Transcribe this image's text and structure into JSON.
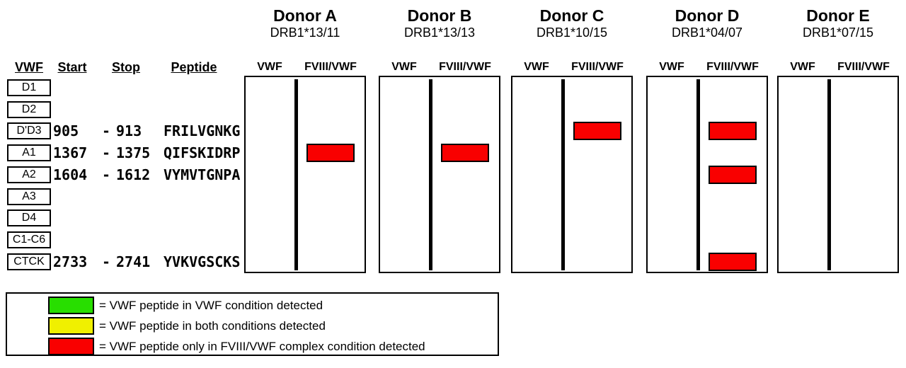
{
  "figure": {
    "peptide_table": {
      "col_headers": [
        "VWF",
        "Start",
        "Stop",
        "Peptide"
      ],
      "range_separator": "-",
      "rows": [
        {
          "domain": "D1",
          "start": "",
          "stop": "",
          "peptide": ""
        },
        {
          "domain": "D2",
          "start": "",
          "stop": "",
          "peptide": ""
        },
        {
          "domain": "D'D3",
          "start": "905",
          "stop": "913",
          "peptide": "FRILVGNKG"
        },
        {
          "domain": "A1",
          "start": "1367",
          "stop": "1375",
          "peptide": "QIFSKIDRP"
        },
        {
          "domain": "A2",
          "start": "1604",
          "stop": "1612",
          "peptide": "VYMVTGNPA"
        },
        {
          "domain": "A3",
          "start": "",
          "stop": "",
          "peptide": ""
        },
        {
          "domain": "D4",
          "start": "",
          "stop": "",
          "peptide": ""
        },
        {
          "domain": "C1-C6",
          "start": "",
          "stop": "",
          "peptide": ""
        },
        {
          "domain": "CTCK",
          "start": "2733",
          "stop": "2741",
          "peptide": "YVKVGSCKS"
        }
      ]
    },
    "lane_headers": [
      "VWF",
      "FVIII/VWF"
    ],
    "donors": [
      {
        "name": "Donor A",
        "hla_type": "DRB1*13/11",
        "fviii_vwf_only_rows": [
          3
        ]
      },
      {
        "name": "Donor B",
        "hla_type": "DRB1*13/13",
        "fviii_vwf_only_rows": [
          3
        ]
      },
      {
        "name": "Donor C",
        "hla_type": "DRB1*10/15",
        "fviii_vwf_only_rows": [
          2
        ]
      },
      {
        "name": "Donor D",
        "hla_type": "DRB1*04/07",
        "fviii_vwf_only_rows": [
          2,
          4,
          8
        ]
      },
      {
        "name": "Donor E",
        "hla_type": "DRB1*07/15",
        "fviii_vwf_only_rows": []
      }
    ],
    "legend": {
      "items": [
        {
          "key": "vwf-condition",
          "color": "#28DE00",
          "label": "= VWF peptide in VWF condition detected"
        },
        {
          "key": "both-conditions",
          "color": "#F0F000",
          "label": "= VWF peptide in both conditions detected"
        },
        {
          "key": "fviii-vwf-complex",
          "color": "#F90000",
          "label": "= VWF peptide only in FVIII/VWF complex condition detected"
        }
      ]
    },
    "colors": {
      "detected_box": "#F90000",
      "lane_line": "#000000",
      "border": "#000000"
    }
  }
}
